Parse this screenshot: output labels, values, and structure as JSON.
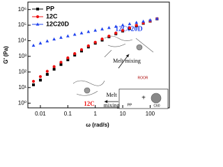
{
  "chart_data": {
    "type": "line",
    "xlabel": "ω (rad/s)",
    "ylabel": "G' (Pa)",
    "x": [
      0.0056,
      0.01,
      0.0178,
      0.0316,
      0.0562,
      0.1,
      0.178,
      0.316,
      0.562,
      1,
      1.78,
      3.16,
      5.62,
      10,
      17.8,
      31.6,
      56.2,
      100,
      178
    ],
    "series": [
      {
        "name": "PP",
        "color": "#000000",
        "marker": "square",
        "values": [
          15,
          30,
          70,
          150,
          300,
          600,
          1200,
          2200,
          4000,
          7000,
          11000,
          18000,
          28000,
          42000,
          62000,
          90000,
          130000,
          180000,
          250000
        ]
      },
      {
        "name": "12C",
        "color": "#ee1111",
        "marker": "circle",
        "values": [
          25,
          50,
          110,
          220,
          420,
          800,
          1500,
          2700,
          4700,
          8000,
          13000,
          20000,
          31000,
          46000,
          67000,
          96000,
          135000,
          185000,
          255000
        ]
      },
      {
        "name": "12C20D",
        "color": "#2244ee",
        "marker": "triangle",
        "values": [
          5000,
          7000,
          9500,
          12500,
          16000,
          20000,
          25000,
          31000,
          38000,
          46000,
          56000,
          68000,
          82000,
          100000,
          120000,
          145000,
          175000,
          210000,
          260000
        ]
      }
    ],
    "xlim": [
      0.0035,
      500
    ],
    "ylim": [
      0.5,
      3000000
    ],
    "xscale": "log",
    "yscale": "log",
    "xticks": [
      0.01,
      0.1,
      1,
      10,
      100
    ],
    "yticks": [
      {
        "value": 1,
        "label": "10⁰"
      },
      {
        "value": 10,
        "label": "10¹"
      },
      {
        "value": 100,
        "label": "10²"
      },
      {
        "value": 1000,
        "label": "10³"
      },
      {
        "value": 10000,
        "label": "10⁴"
      },
      {
        "value": 100000,
        "label": "10⁵"
      },
      {
        "value": 1000000,
        "label": "10⁶"
      }
    ],
    "legend": "upper left",
    "annotations": [
      "12C020D",
      "Melt mixing",
      "ROOR",
      "12C",
      "Melt",
      "mixing",
      "PP",
      "+",
      "C60"
    ]
  }
}
